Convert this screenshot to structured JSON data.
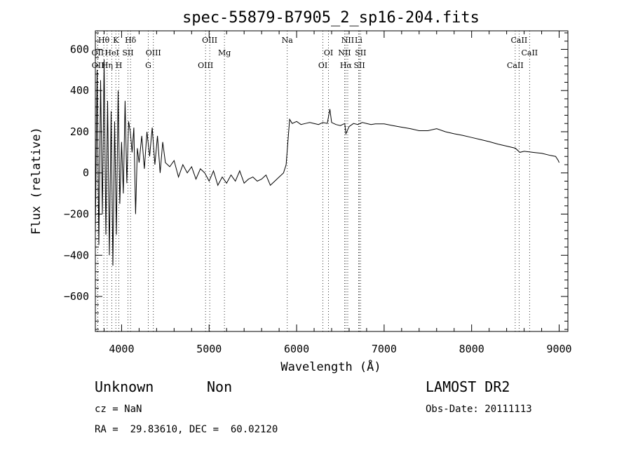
{
  "chart_data": {
    "type": "line",
    "title": "spec-55879-B7905_2_sp16-204.fits",
    "xlabel": "Wavelength (Å)",
    "ylabel": "Flux (relative)",
    "xlim": [
      3700,
      9100
    ],
    "ylim": [
      -770,
      690
    ],
    "xticks": [
      4000,
      5000,
      6000,
      7000,
      8000,
      9000
    ],
    "yticks": [
      -600,
      -400,
      -200,
      0,
      200,
      400,
      600
    ],
    "grid": false,
    "series": [
      {
        "x": [
          3700,
          3720,
          3740,
          3760,
          3780,
          3800,
          3820,
          3840,
          3860,
          3880,
          3900,
          3920,
          3940,
          3960,
          3980,
          4000,
          4020,
          4040,
          4060,
          4080,
          4100,
          4120,
          4140,
          4160,
          4180,
          4200,
          4230,
          4260,
          4290,
          4320,
          4350,
          4380,
          4410,
          4440,
          4470,
          4500,
          4550,
          4600,
          4650,
          4700,
          4750,
          4800,
          4850,
          4900,
          4950,
          5000,
          5050,
          5100,
          5150,
          5200,
          5250,
          5300,
          5350,
          5400,
          5450,
          5500,
          5550,
          5600,
          5650,
          5700,
          5750,
          5800,
          5850,
          5880,
          5900,
          5920,
          5950,
          6000,
          6050,
          6100,
          6150,
          6200,
          6250,
          6300,
          6350,
          6380,
          6400,
          6450,
          6500,
          6550,
          6563,
          6600,
          6650,
          6700,
          6750,
          6800,
          6850,
          6900,
          7000,
          7100,
          7200,
          7300,
          7400,
          7500,
          7600,
          7700,
          7800,
          7900,
          8000,
          8100,
          8200,
          8300,
          8400,
          8500,
          8550,
          8600,
          8700,
          8800,
          8900,
          8960,
          8990,
          9000
        ],
        "y": [
          -300,
          500,
          -350,
          450,
          -200,
          550,
          -300,
          350,
          -400,
          300,
          -450,
          250,
          -300,
          400,
          -150,
          150,
          -100,
          350,
          -50,
          250,
          200,
          100,
          220,
          -200,
          120,
          50,
          180,
          20,
          200,
          80,
          220,
          40,
          180,
          0,
          150,
          50,
          30,
          60,
          -20,
          40,
          0,
          30,
          -30,
          20,
          0,
          -40,
          10,
          -60,
          -20,
          -50,
          -10,
          -40,
          10,
          -50,
          -30,
          -20,
          -40,
          -30,
          -10,
          -60,
          -40,
          -20,
          0,
          40,
          150,
          260,
          240,
          250,
          235,
          240,
          245,
          240,
          235,
          245,
          240,
          310,
          245,
          235,
          230,
          240,
          190,
          225,
          240,
          235,
          245,
          240,
          235,
          238,
          238,
          230,
          222,
          215,
          205,
          205,
          215,
          200,
          190,
          182,
          172,
          162,
          152,
          140,
          130,
          120,
          100,
          105,
          100,
          95,
          85,
          80,
          60,
          50
        ]
      }
    ],
    "line_markers": [
      {
        "name": "Hθ",
        "wave": 3797,
        "row": 0
      },
      {
        "name": "K",
        "wave": 3934,
        "row": 0
      },
      {
        "name": "Hδ",
        "wave": 4102,
        "row": 0
      },
      {
        "name": "OIII",
        "wave": 5007,
        "row": 0
      },
      {
        "name": "Na",
        "wave": 5893,
        "row": 0
      },
      {
        "name": "NII",
        "wave": 6584,
        "row": 0
      },
      {
        "name": "Li",
        "wave": 6708,
        "row": 0
      },
      {
        "name": "CaII",
        "wave": 8542,
        "row": 0
      },
      {
        "name": "OII",
        "wave": 3727,
        "row": 1
      },
      {
        "name": "HeI",
        "wave": 3889,
        "row": 1
      },
      {
        "name": "SII",
        "wave": 4072,
        "row": 1
      },
      {
        "name": "OIII",
        "wave": 4363,
        "row": 1
      },
      {
        "name": "Mg",
        "wave": 5175,
        "row": 1
      },
      {
        "name": "OI",
        "wave": 6364,
        "row": 1
      },
      {
        "name": "NII",
        "wave": 6548,
        "row": 1
      },
      {
        "name": "SII",
        "wave": 6731,
        "row": 1
      },
      {
        "name": "CaII",
        "wave": 8662,
        "row": 1
      },
      {
        "name": "OII",
        "wave": 3729,
        "row": 2
      },
      {
        "name": "Hη",
        "wave": 3835,
        "row": 2
      },
      {
        "name": "H",
        "wave": 3969,
        "row": 2
      },
      {
        "name": "G",
        "wave": 4305,
        "row": 2
      },
      {
        "name": "OIII",
        "wave": 4959,
        "row": 2
      },
      {
        "name": "OI",
        "wave": 6300,
        "row": 2
      },
      {
        "name": "Hα",
        "wave": 6563,
        "row": 2
      },
      {
        "name": "SII",
        "wave": 6717,
        "row": 2
      },
      {
        "name": "CaII",
        "wave": 8498,
        "row": 2
      }
    ]
  },
  "info": {
    "class_label": "Unknown",
    "subclass_label": "Non",
    "survey": "LAMOST DR2",
    "cz": "cz = NaN",
    "obs_date": "Obs-Date: 20111113",
    "coords": "RA =  29.83610, DEC =  60.02120"
  }
}
